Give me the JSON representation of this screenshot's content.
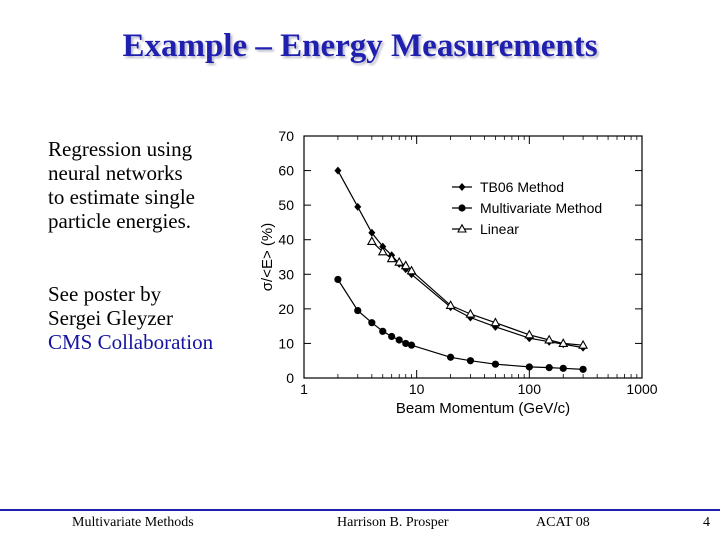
{
  "slide": {
    "title": "Example – Energy Measurements",
    "text_block_1": [
      "Regression using",
      "neural networks",
      "to estimate single",
      "particle energies."
    ],
    "text_block_2": [
      "See poster by",
      "Sergei Gleyzer"
    ],
    "text_block_2_accent": "CMS Collaboration",
    "colors": {
      "title": "#1f1fb0",
      "accent": "#1414a0",
      "footer_line": "#1f1fb0"
    }
  },
  "footer": {
    "left": "Multivariate Methods",
    "center": "Harrison B. Prosper",
    "right": "ACAT 08",
    "page": "4"
  },
  "chart_data": {
    "type": "line",
    "xlabel": "Beam Momentum (GeV/c)",
    "ylabel": "σ/<E> (%)",
    "xscale": "log",
    "xlim": [
      1,
      1000
    ],
    "ylim": [
      0,
      70
    ],
    "xticks": [
      "1",
      "10",
      "100",
      "1000"
    ],
    "yticks": [
      "0",
      "10",
      "20",
      "30",
      "40",
      "50",
      "60",
      "70"
    ],
    "legend_position": "top-right",
    "series": [
      {
        "name": "TB06 Method",
        "marker": "diamond",
        "x": [
          2,
          3,
          4,
          5,
          6,
          7,
          8,
          9,
          20,
          30,
          50,
          100,
          150,
          200,
          300
        ],
        "y": [
          60,
          49.5,
          42,
          38,
          35.5,
          33,
          31.5,
          30,
          20.5,
          17.5,
          14.8,
          11.5,
          10.5,
          9.8,
          8.8
        ]
      },
      {
        "name": "Multivariate Method",
        "marker": "circle",
        "x": [
          2,
          3,
          4,
          5,
          6,
          7,
          8,
          9,
          20,
          30,
          50,
          100,
          150,
          200,
          300
        ],
        "y": [
          28.5,
          19.5,
          16,
          13.5,
          12,
          11,
          10,
          9.5,
          6,
          5,
          4,
          3.2,
          3,
          2.8,
          2.5
        ]
      },
      {
        "name": "Linear",
        "marker": "triangle",
        "x": [
          4,
          5,
          6,
          7,
          8,
          9,
          20,
          30,
          50,
          100,
          150,
          200,
          300
        ],
        "y": [
          39.5,
          36.5,
          34.5,
          33.5,
          32.5,
          31,
          21,
          18.5,
          16,
          12.5,
          11,
          10,
          9.5
        ]
      }
    ]
  }
}
